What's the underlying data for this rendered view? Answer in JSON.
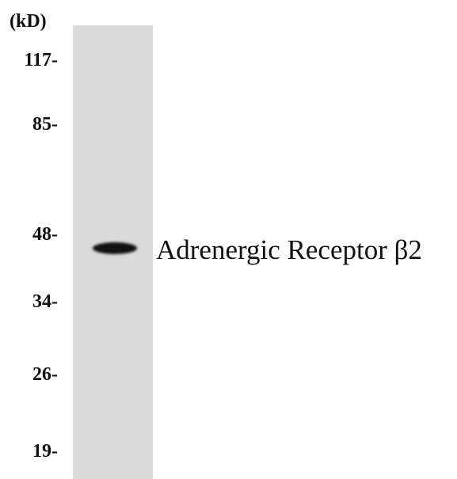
{
  "unit_label": "(kD)",
  "markers": [
    "117-",
    "85-",
    "48-",
    "34-",
    "26-",
    "19-"
  ],
  "band_label": "Adrenergic Receptor β2"
}
